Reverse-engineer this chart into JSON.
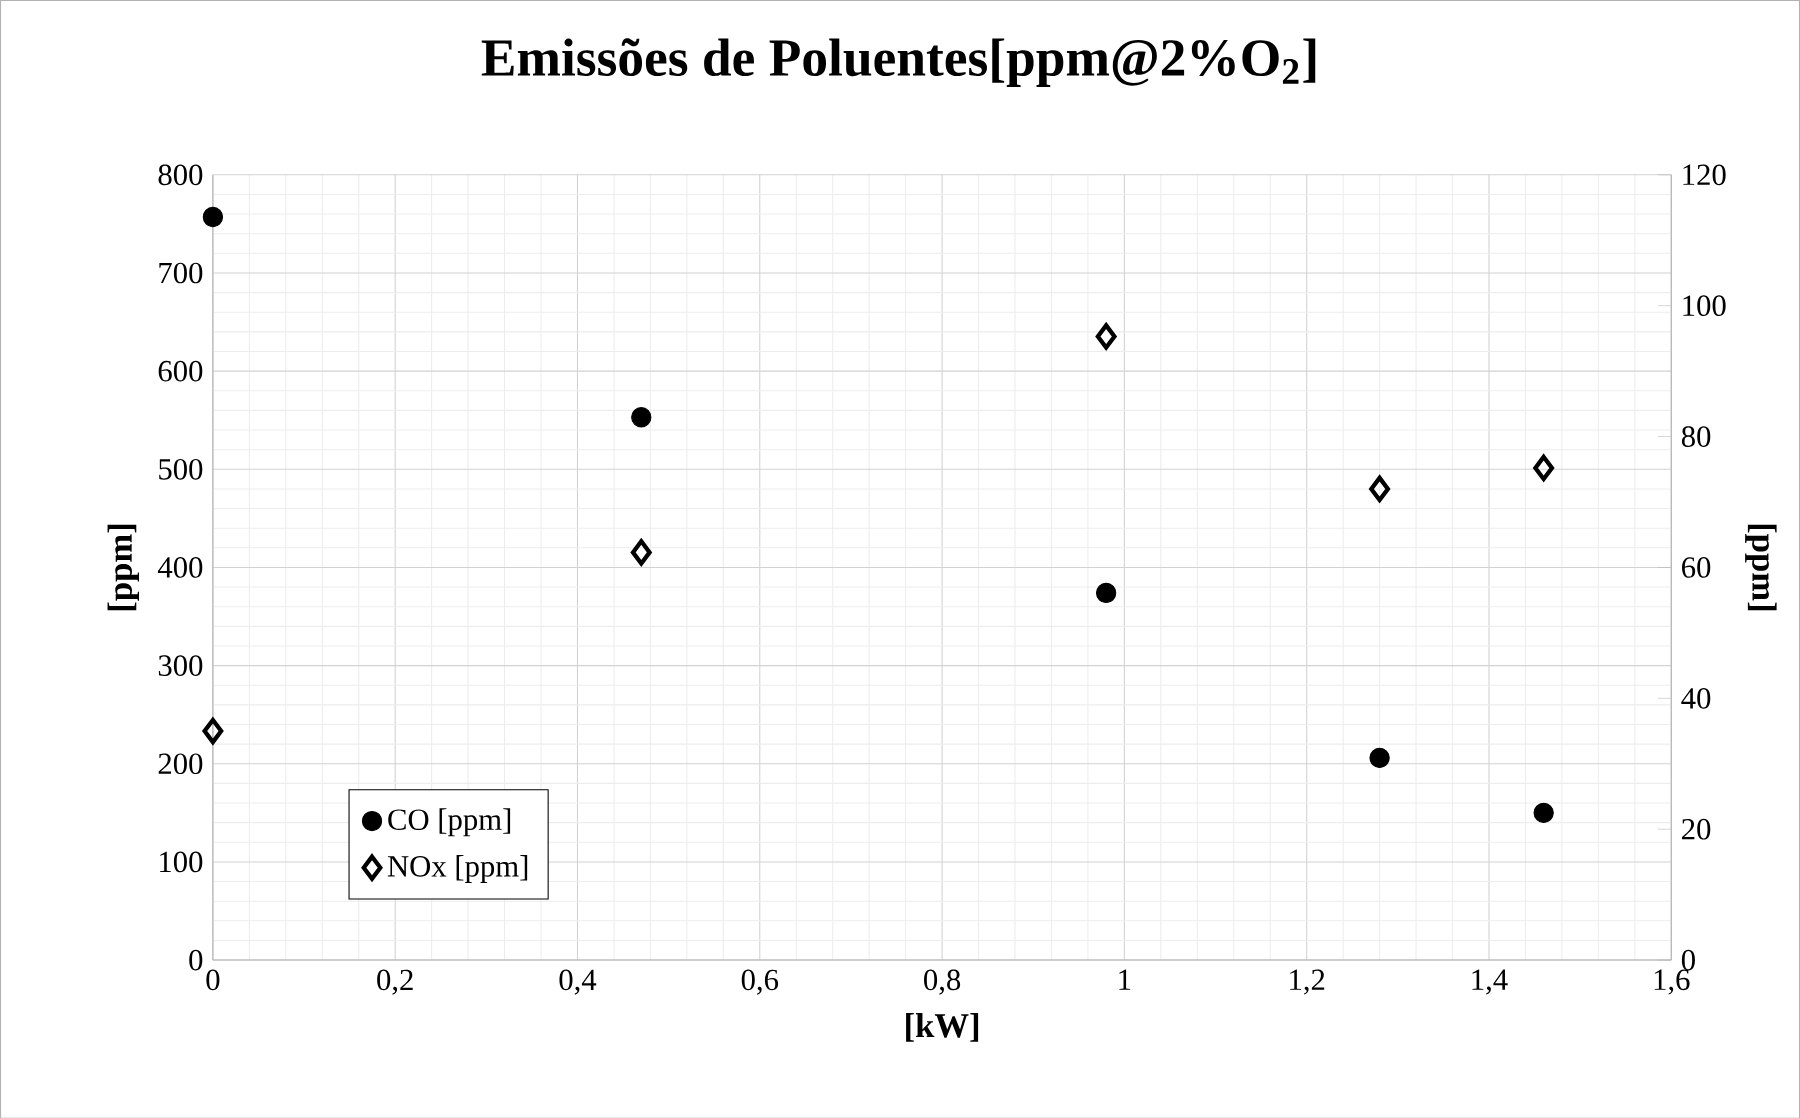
{
  "chart_data": {
    "type": "scatter",
    "title": "Emissões de Poluentes[ppm@2%O$_{2}$]",
    "xlabel": "[kW]",
    "ylabel": "[ppm]",
    "y2label": "[ppm]",
    "series": [
      {
        "name": "CO [ppm]",
        "color": "#000000",
        "marker": "circle",
        "x": [
          0,
          0.47,
          0.98,
          1.28,
          1.46
        ],
        "values": [
          757,
          553,
          374,
          206,
          150
        ]
      },
      {
        "name": "NOx [ppm]",
        "color": "#000000",
        "marker": "diamond",
        "axis": "y2",
        "x": [
          0,
          0.47,
          0.98,
          1.28,
          1.46
        ],
        "values": [
          35,
          62.3,
          95.3,
          72,
          75.2
        ]
      }
    ],
    "xlim": [
      0,
      1.6
    ],
    "xticks": [
      0,
      {
        "value": 0.2,
        "label": "0,2"
      },
      {
        "value": 0.4,
        "label": "0,4"
      },
      {
        "value": 0.6,
        "label": "0,6"
      },
      {
        "value": 0.8,
        "label": "0,8"
      },
      1,
      {
        "value": 1.2,
        "label": "1,2"
      },
      {
        "value": 1.4,
        "label": "1,4"
      },
      {
        "value": 1.6,
        "label": "1,6"
      }
    ],
    "ylim": [
      0,
      800
    ],
    "yticks": [
      0,
      100,
      200,
      300,
      400,
      500,
      600,
      700,
      800
    ],
    "y2lim": [
      0,
      120
    ],
    "y2ticks": [
      0,
      20,
      40,
      60,
      80,
      100,
      120
    ],
    "grid": true,
    "legend": "bottom left"
  }
}
